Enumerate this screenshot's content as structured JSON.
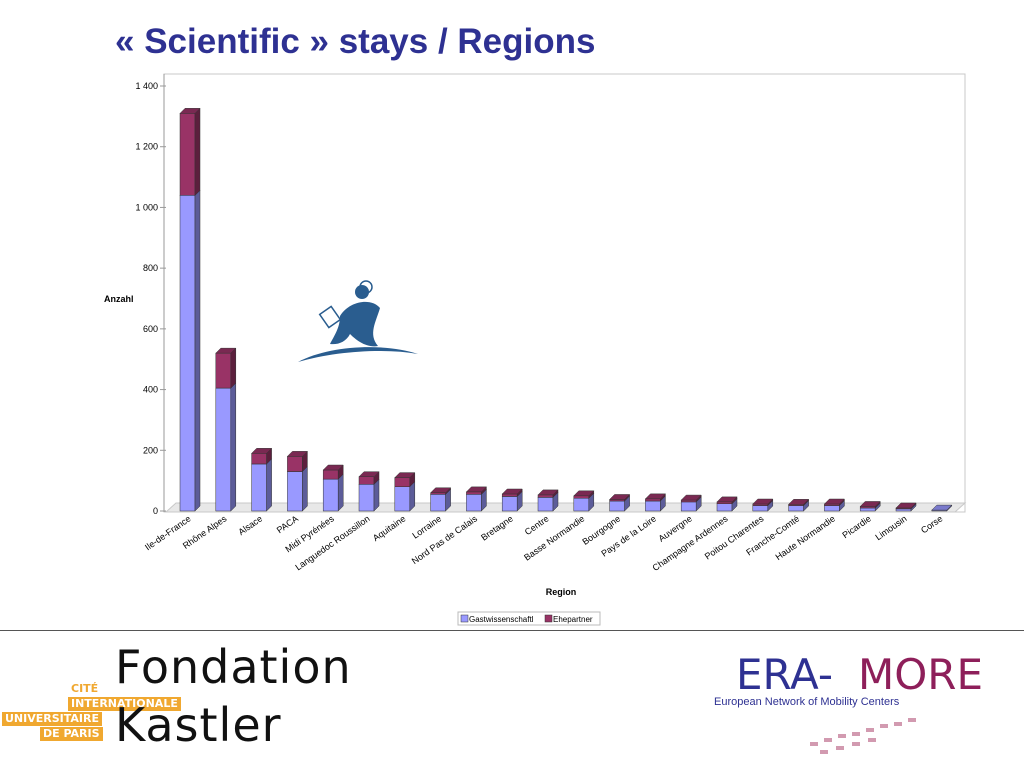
{
  "slide": {
    "title": "« Scientific » stays / Regions"
  },
  "chart_data": {
    "type": "bar",
    "stacked": true,
    "ylabel": "Anzahl",
    "xlabel": "Region",
    "ylim": [
      0,
      1400
    ],
    "yticks": [
      0,
      200,
      400,
      600,
      800,
      1000,
      1200,
      1400
    ],
    "ytick_labels": [
      "0",
      "200",
      "400",
      "600",
      "800",
      "1 000",
      "1 200",
      "1 400"
    ],
    "categories": [
      "Ile-de-France",
      "Rhône Alpes",
      "Alsace",
      "PACA",
      "Midi Pyrénées",
      "Languedoc Roussillon",
      "Aquitaine",
      "Lorraine",
      "Nord Pas de Calais",
      "Bretagne",
      "Centre",
      "Basse Normandie",
      "Bourgogne",
      "Pays de la Loire",
      "Auvergne",
      "Champagne Ardennes",
      "Poitou Charentes",
      "Franche-Comté",
      "Haute Normandie",
      "Picardie",
      "Limousin",
      "Corse"
    ],
    "series": [
      {
        "name": "Gastwissenschaftl",
        "color": "#9999ff",
        "values": [
          1040,
          405,
          155,
          130,
          105,
          88,
          80,
          55,
          55,
          48,
          45,
          42,
          33,
          33,
          30,
          24,
          18,
          18,
          18,
          10,
          7,
          3
        ]
      },
      {
        "name": "Ehepartner",
        "color": "#993366",
        "values": [
          270,
          115,
          35,
          50,
          30,
          25,
          30,
          5,
          8,
          8,
          8,
          8,
          5,
          7,
          6,
          6,
          5,
          4,
          5,
          5,
          3,
          0
        ]
      }
    ],
    "legend_position": "bottom",
    "grid": false
  },
  "footer": {
    "cite_lines": [
      "CITÉ",
      "INTERNATIONALE",
      "UNIVERSITAIRE",
      "DE PARIS"
    ],
    "fondation_lines": [
      "Fondation",
      "Kastler"
    ],
    "era_left": "ERA-",
    "era_right": "MORE",
    "era_subtitle": "European Network of Mobility Centers",
    "colors": {
      "cite": "#f0a830",
      "era_blue": "#2e3192",
      "era_purple": "#8e1f5a"
    }
  }
}
